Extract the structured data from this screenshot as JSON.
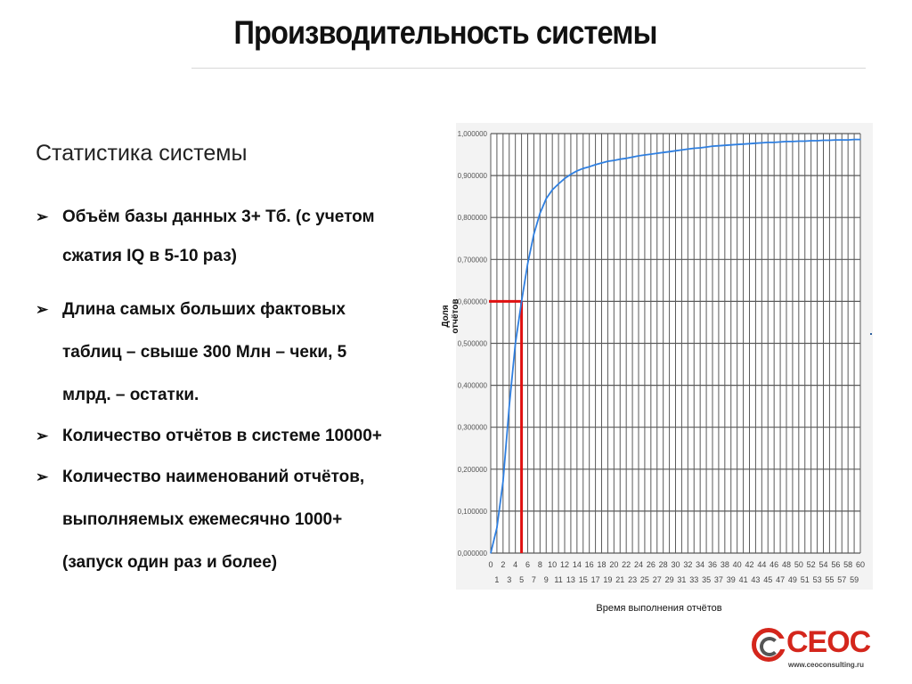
{
  "slide": {
    "title": "Производительность системы",
    "heading": "Статистика системы",
    "bullets": [
      {
        "marker": "➢",
        "lines": [
          " Объём базы данных  3+ Тб. (с учетом",
          "сжатия IQ в 5-10 раз)"
        ]
      },
      {
        "marker": "➢",
        "lines": [
          " Длина самых больших фактовых",
          "таблиц – свыше 300 Млн – чеки, 5",
          "млрд. – остатки."
        ]
      },
      {
        "marker": "➢",
        "lines": [
          " Количество отчётов в системе 10000+"
        ]
      },
      {
        "marker": "➢",
        "lines": [
          "Количество наименований отчётов,",
          "выполняемых ежемесячно 1000+",
          "(запуск один раз и более)"
        ]
      }
    ]
  },
  "logo": {
    "text": "CEOC",
    "url": "www.ceoconsulting.ru",
    "color": "#d4261c"
  },
  "chart_data": {
    "type": "line",
    "title": "",
    "xlabel": "Время выполнения отчётов",
    "ylabel": "Доля отчётов",
    "xlim": [
      0,
      60
    ],
    "ylim": [
      0,
      1
    ],
    "x_ticks_top": [
      "0",
      "2",
      "4",
      "6",
      "8",
      "10",
      "12",
      "14",
      "16",
      "18",
      "20",
      "22",
      "24",
      "26",
      "28",
      "30",
      "32",
      "34",
      "36",
      "38",
      "40",
      "42",
      "44",
      "46",
      "48",
      "50",
      "52",
      "54",
      "56",
      "58",
      "60"
    ],
    "x_ticks_bottom": [
      "1",
      "3",
      "5",
      "7",
      "9",
      "11",
      "13",
      "15",
      "17",
      "19",
      "21",
      "23",
      "25",
      "27",
      "29",
      "31",
      "33",
      "35",
      "37",
      "39",
      "41",
      "43",
      "45",
      "47",
      "49",
      "51",
      "53",
      "55",
      "57",
      "59"
    ],
    "y_ticks": [
      "0,000000",
      "0,100000",
      "0,200000",
      "0,300000",
      "0,400000",
      "0,500000",
      "0,600000",
      "0,700000",
      "0,800000",
      "0,900000",
      "1,000000"
    ],
    "grid": true,
    "series": [
      {
        "color": "#2f7fe0",
        "x": [
          0,
          1,
          2,
          3,
          4,
          5,
          6,
          7,
          8,
          9,
          10,
          11,
          12,
          13,
          14,
          15,
          16,
          17,
          18,
          19,
          20,
          21,
          22,
          23,
          24,
          25,
          26,
          27,
          28,
          29,
          30,
          31,
          32,
          33,
          34,
          35,
          36,
          37,
          38,
          39,
          40,
          41,
          42,
          43,
          44,
          45,
          46,
          47,
          48,
          49,
          50,
          51,
          52,
          53,
          54,
          55,
          56,
          57,
          58,
          59,
          60
        ],
        "y": [
          0.0,
          0.06,
          0.17,
          0.35,
          0.5,
          0.6,
          0.69,
          0.76,
          0.81,
          0.845,
          0.866,
          0.88,
          0.893,
          0.903,
          0.911,
          0.917,
          0.921,
          0.926,
          0.93,
          0.934,
          0.936,
          0.939,
          0.941,
          0.944,
          0.947,
          0.949,
          0.951,
          0.953,
          0.955,
          0.957,
          0.959,
          0.961,
          0.963,
          0.965,
          0.966,
          0.968,
          0.97,
          0.971,
          0.972,
          0.973,
          0.974,
          0.975,
          0.976,
          0.977,
          0.978,
          0.979,
          0.979,
          0.98,
          0.981,
          0.981,
          0.982,
          0.982,
          0.983,
          0.983,
          0.984,
          0.984,
          0.985,
          0.985,
          0.985,
          0.986,
          0.986
        ]
      }
    ],
    "reference_line": {
      "color": "#e01010",
      "x": 5,
      "y": 0.6
    }
  }
}
